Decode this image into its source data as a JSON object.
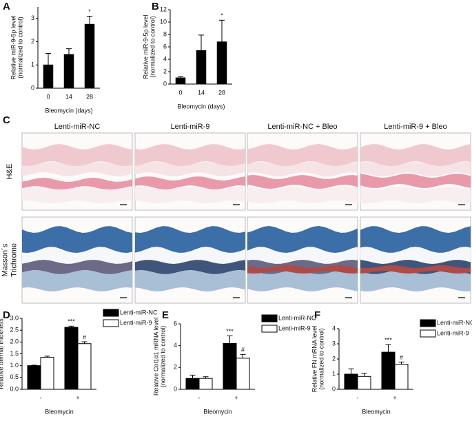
{
  "chart_data": [
    {
      "type": "bar",
      "panel": "A",
      "ytitle": [
        "Relative miR-9-5p level",
        "(normalized to control)"
      ],
      "xtitle": "Bleomycin (days)",
      "categories": [
        "0",
        "14",
        "28"
      ],
      "values": [
        1.0,
        1.45,
        2.75
      ],
      "errors": [
        0.5,
        0.25,
        0.35
      ],
      "significance": [
        null,
        null,
        "*"
      ],
      "color": "#000000",
      "ylim": [
        0,
        3.5
      ],
      "yticks": [
        0,
        1,
        2,
        3
      ]
    },
    {
      "type": "bar",
      "panel": "B",
      "ytitle": [
        "Relative miR-9-5p level",
        "(normalized to control)"
      ],
      "xtitle": "Bleomycin (days)",
      "categories": [
        "0",
        "14",
        "28"
      ],
      "values": [
        1.0,
        5.4,
        6.8
      ],
      "errors": [
        0.2,
        2.5,
        3.5
      ],
      "significance": [
        null,
        null,
        "*"
      ],
      "color": "#000000",
      "ylim": [
        0,
        12
      ],
      "yticks": [
        0,
        2,
        4,
        6,
        8,
        10,
        12
      ]
    },
    {
      "type": "bar",
      "panel": "D",
      "ytitle": "Relative dermal thickness",
      "xtitle": "Bleomycin",
      "categories": [
        "-",
        "+"
      ],
      "legend": "right",
      "series": [
        {
          "name": "Lenti-miR-NC",
          "color": "#000000",
          "values": [
            1.0,
            2.62
          ],
          "errors": [
            0.02,
            0.05
          ],
          "significance": [
            null,
            "***"
          ]
        },
        {
          "name": "Lenti-miR-9",
          "color": "#ffffff",
          "values": [
            1.35,
            1.93
          ],
          "errors": [
            0.05,
            0.08
          ],
          "significance": [
            null,
            "#"
          ]
        }
      ],
      "ylim": [
        0,
        3
      ],
      "yticks": [
        {
          "value": 0,
          "label": "0.0"
        },
        0.5,
        {
          "value": 1,
          "label": "1.0"
        },
        1.5,
        {
          "value": 2,
          "label": "2.0"
        },
        2.5,
        {
          "value": 3,
          "label": "3.0"
        }
      ]
    },
    {
      "type": "bar",
      "panel": "E",
      "ytitle": [
        "Relative Col1α1 mRNA level",
        "(normalized to control)"
      ],
      "xtitle": "Bleomycin",
      "categories": [
        "-",
        "+"
      ],
      "legend": "right",
      "series": [
        {
          "name": "Lenti-miR-NC",
          "color": "#000000",
          "values": [
            1.0,
            4.2
          ],
          "errors": [
            0.3,
            0.7
          ],
          "significance": [
            null,
            "***"
          ]
        },
        {
          "name": "Lenti-miR-9",
          "color": "#ffffff",
          "values": [
            1.0,
            2.85
          ],
          "errors": [
            0.15,
            0.35
          ],
          "significance": [
            null,
            "#"
          ]
        }
      ],
      "ylim": [
        0,
        6
      ],
      "yticks": [
        0,
        2,
        4,
        6
      ]
    },
    {
      "type": "bar",
      "panel": "F",
      "ytitle": [
        "Relative FN mRNA level",
        "(normalized to control)"
      ],
      "xtitle": "Bleomycin",
      "categories": [
        "-",
        "+"
      ],
      "legend": "right",
      "series": [
        {
          "name": "Lenti-miR-NC",
          "color": "#000000",
          "values": [
            1.0,
            2.45
          ],
          "errors": [
            0.35,
            0.5
          ],
          "significance": [
            null,
            "***"
          ]
        },
        {
          "name": "Lenti-miR-9",
          "color": "#ffffff",
          "values": [
            0.85,
            1.65
          ],
          "errors": [
            0.2,
            0.15
          ],
          "significance": [
            null,
            "#"
          ]
        }
      ],
      "ylim": [
        0,
        4
      ],
      "yticks": [
        0,
        1,
        2,
        3,
        4
      ]
    }
  ],
  "histology": {
    "panel": "C",
    "columns": [
      "Lenti-miR-NC",
      "Lenti-miR-9",
      "Lenti-miR-NC + Bleo",
      "Lenti-miR-9 + Bleo"
    ],
    "rows": [
      [
        "H&E"
      ],
      [
        "Masson´s",
        "Trichrome"
      ]
    ]
  }
}
